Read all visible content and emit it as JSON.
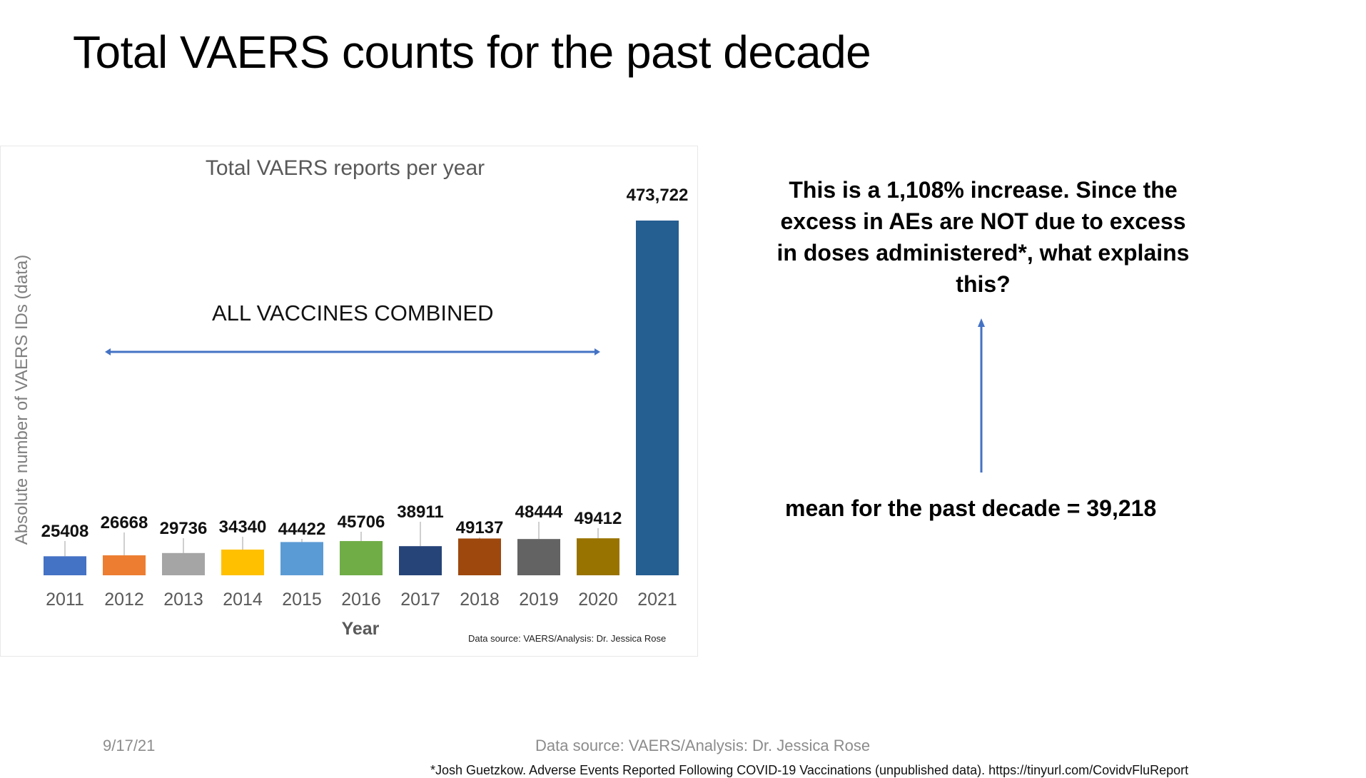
{
  "slide": {
    "title": "Total VAERS counts for the past decade",
    "callout": "This is a 1,108% increase. Since the excess in AEs are NOT due to excess in doses administered*, what explains this?",
    "mean_text": "mean for the past decade = 39,218",
    "footer_date": "9/17/21",
    "footer_source": "Data source: VAERS/Analysis: Dr. Jessica Rose",
    "footnote": "*Josh Guetzkow. Adverse Events Reported Following COVID-19 Vaccinations (unpublished data). https://tinyurl.com/CovidvFluReport"
  },
  "chart_data": {
    "type": "bar",
    "title": "Total VAERS reports per year",
    "xlabel": "Year",
    "ylabel": "Absolute number of VAERS IDs (data)",
    "annotation": "ALL VACCINES COMBINED",
    "source_note": "Data source: VAERS/Analysis: Dr. Jessica Rose",
    "categories": [
      "2011",
      "2012",
      "2013",
      "2014",
      "2015",
      "2016",
      "2017",
      "2018",
      "2019",
      "2020",
      "2021"
    ],
    "values": [
      25408,
      26668,
      29736,
      34340,
      44422,
      45706,
      38911,
      49137,
      48444,
      49412,
      473722
    ],
    "data_labels": [
      "25408",
      "26668",
      "29736",
      "34340",
      "44422",
      "45706",
      "38911",
      "49137",
      "48444",
      "49412",
      "473,722"
    ],
    "colors": [
      "#4472c4",
      "#ed7d31",
      "#a5a5a5",
      "#ffc000",
      "#5b9bd5",
      "#70ad47",
      "#264478",
      "#9e480e",
      "#636363",
      "#997300",
      "#255e91"
    ],
    "ylim": [
      0,
      473722
    ],
    "grid": false,
    "legend": "none"
  }
}
